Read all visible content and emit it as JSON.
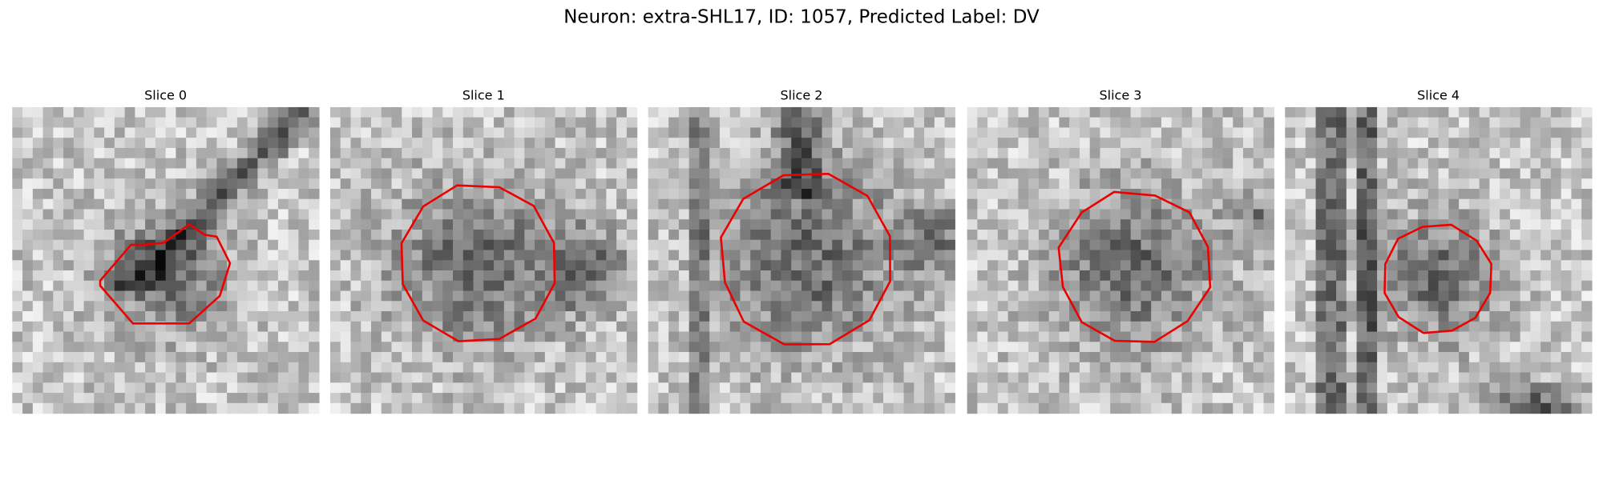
{
  "header": {
    "title": "Neuron: extra-SHL17, ID: 1057, Predicted Label: DV"
  },
  "panels": [
    {
      "title": "Slice 0"
    },
    {
      "title": "Slice 1"
    },
    {
      "title": "Slice 2"
    },
    {
      "title": "Slice 3"
    },
    {
      "title": "Slice 4"
    }
  ]
}
